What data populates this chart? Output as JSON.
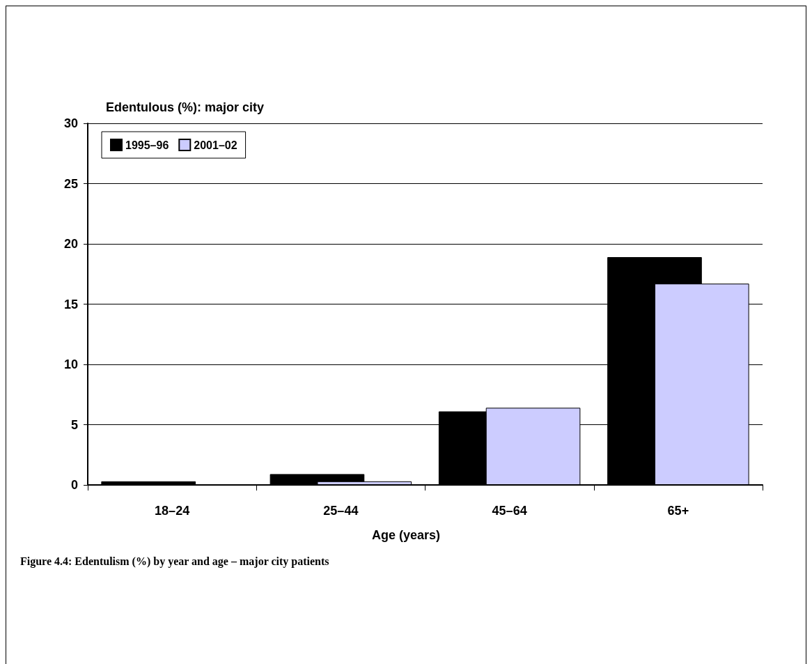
{
  "chart_data": {
    "type": "bar",
    "ylabel": "Edentulous (%): major city",
    "xlabel": "Age (years)",
    "categories": [
      "18–24",
      "25–44",
      "45–64",
      "65+"
    ],
    "series": [
      {
        "name": "1995–96",
        "color": "#000000",
        "values": [
          0.3,
          0.9,
          6.1,
          18.9
        ]
      },
      {
        "name": "2001–02",
        "color": "#ccccff",
        "values": [
          0,
          0.3,
          6.4,
          16.7
        ]
      }
    ],
    "ylim": [
      0,
      30
    ],
    "yticks": [
      0,
      5,
      10,
      15,
      20,
      25,
      30
    ],
    "grid": "y",
    "legend": "top left",
    "annotations": [
      "Figure 4.4: Edentulism (%) by year and age – major city patients"
    ]
  }
}
